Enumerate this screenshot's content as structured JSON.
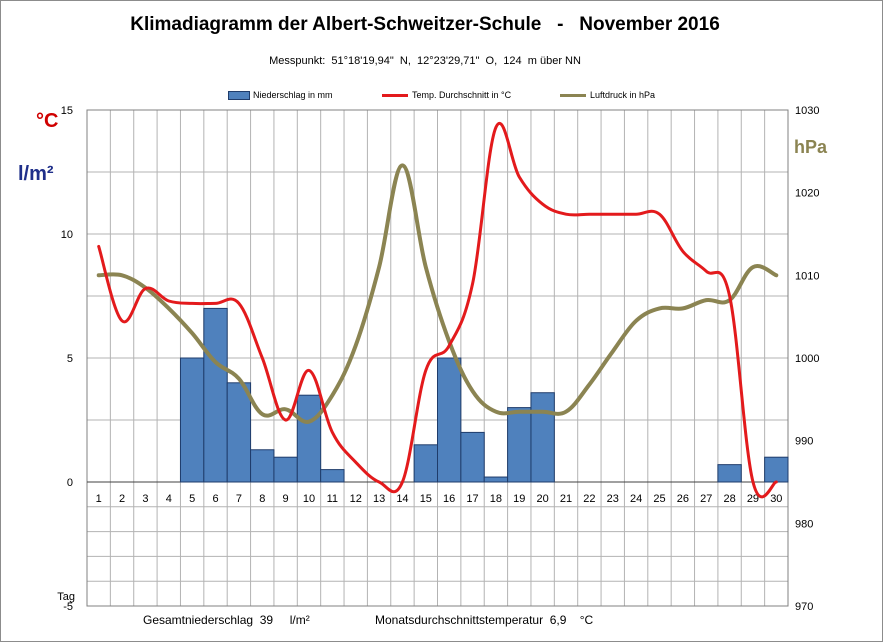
{
  "title": "Klimadiagramm der Albert-Schweitzer-Schule   -   November 2016",
  "subtitle": "Messpunkt:  51°18'19,94\"  N,  12°23'29,71\"  O,  124  m über NN",
  "units": {
    "left_temp": "°C",
    "left_precip": "l/m²",
    "right_pressure": "hPa",
    "x_axis": "Tag"
  },
  "footer": {
    "precip_text": "Gesamtniederschlag  39     l/m²",
    "temp_text": "Monatsdurchschnittstemperatur  6,9    °C"
  },
  "colors": {
    "bar_fill": "#4f81bd",
    "bar_edge": "#1f3c6b",
    "temp_line": "#e31a1c",
    "pressure_line": "#8b8452",
    "left_temp_label": "#d00000",
    "left_precip_label": "#1f2f8a",
    "right_label": "#8b8452",
    "grid": "#b3b3b3"
  },
  "chart_data": {
    "type": "bar+line",
    "title": "Klimadiagramm der Albert-Schweitzer-Schule - November 2016",
    "x": [
      1,
      2,
      3,
      4,
      5,
      6,
      7,
      8,
      9,
      10,
      11,
      12,
      13,
      14,
      15,
      16,
      17,
      18,
      19,
      20,
      21,
      22,
      23,
      24,
      25,
      26,
      27,
      28,
      29,
      30
    ],
    "xlabel": "Tag",
    "y_left": {
      "label": "°C / l/m²",
      "lim": [
        -5,
        15
      ],
      "ticks": [
        -5,
        0,
        5,
        10,
        15
      ]
    },
    "y_right": {
      "label": "hPa",
      "lim": [
        970,
        1030
      ],
      "ticks": [
        970,
        980,
        990,
        1000,
        1010,
        1020,
        1030
      ]
    },
    "grid": true,
    "legend_position": "top",
    "series": [
      {
        "name": "Niederschlag in mm",
        "kind": "bar",
        "axis": "left",
        "values": [
          0,
          0,
          0,
          0,
          5,
          7,
          4,
          1.3,
          1,
          3.5,
          0.5,
          0,
          0,
          0,
          1.5,
          5,
          2,
          0.2,
          3,
          3.6,
          0,
          0,
          0,
          0,
          0,
          0,
          0,
          0.7,
          0,
          1
        ]
      },
      {
        "name": "Temp. Durchschnitt in °C",
        "kind": "line",
        "axis": "left",
        "values": [
          9.5,
          6.5,
          7.8,
          7.3,
          7.2,
          7.2,
          7.2,
          5,
          2.5,
          4.5,
          2,
          0.8,
          0,
          0,
          4.5,
          5.5,
          8,
          14.3,
          12.3,
          11.2,
          10.8,
          10.8,
          10.8,
          10.8,
          10.8,
          9.3,
          8.5,
          7.5,
          0,
          0
        ]
      },
      {
        "name": "Luftdruck in hPa",
        "kind": "line",
        "axis": "right",
        "values": [
          1010,
          1010,
          1008.5,
          1006,
          1003,
          999.5,
          997.5,
          993.2,
          993.8,
          992.3,
          995.5,
          1001.5,
          1011,
          1023.3,
          1011,
          1002,
          996,
          993.5,
          993.5,
          993.5,
          993.5,
          996.8,
          1000.8,
          1004.5,
          1006,
          1006,
          1007,
          1007,
          1011,
          1010
        ]
      }
    ]
  }
}
